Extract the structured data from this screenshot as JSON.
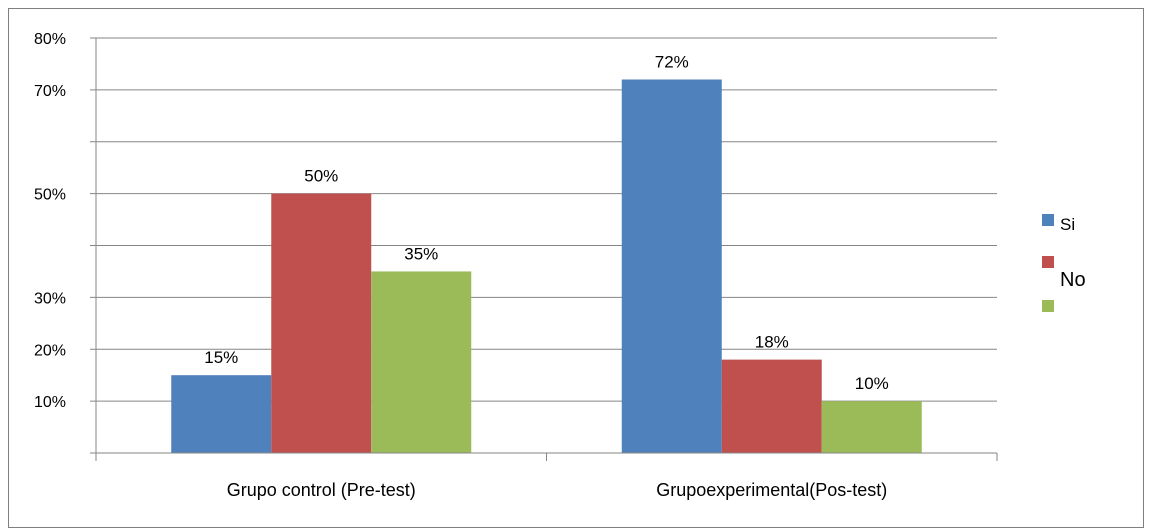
{
  "chart_data": {
    "type": "bar",
    "categories": [
      "Grupo control (Pre-test)",
      "Grupoexperimental(Pos-test)"
    ],
    "series": [
      {
        "name": "Si",
        "values": [
          15,
          72
        ],
        "labels": [
          "15%",
          "72%"
        ],
        "color": "#4f81bd"
      },
      {
        "name": "No",
        "values": [
          50,
          18
        ],
        "labels": [
          "50%",
          "18%"
        ],
        "color": "#c0504d"
      },
      {
        "name": "",
        "values": [
          35,
          10
        ],
        "labels": [
          "35%",
          "10%"
        ],
        "color": "#9bbb59"
      }
    ],
    "y_tick_labels": [
      {
        "value": 10,
        "label": "10%"
      },
      {
        "value": 20,
        "label": "20%"
      },
      {
        "value": 30,
        "label": "30%"
      },
      {
        "value": 50,
        "label": "50%"
      },
      {
        "value": 70,
        "label": "70%"
      },
      {
        "value": 80,
        "label": "80%"
      }
    ],
    "ylim": [
      0,
      80
    ],
    "gridlines": [
      10,
      20,
      30,
      40,
      50,
      60,
      70,
      80
    ],
    "grid": true,
    "legend_position": "right",
    "title": "",
    "xlabel": "",
    "ylabel": ""
  },
  "colors": {
    "grid": "#868686",
    "axis": "#868686",
    "border": "#7f7f7f"
  }
}
